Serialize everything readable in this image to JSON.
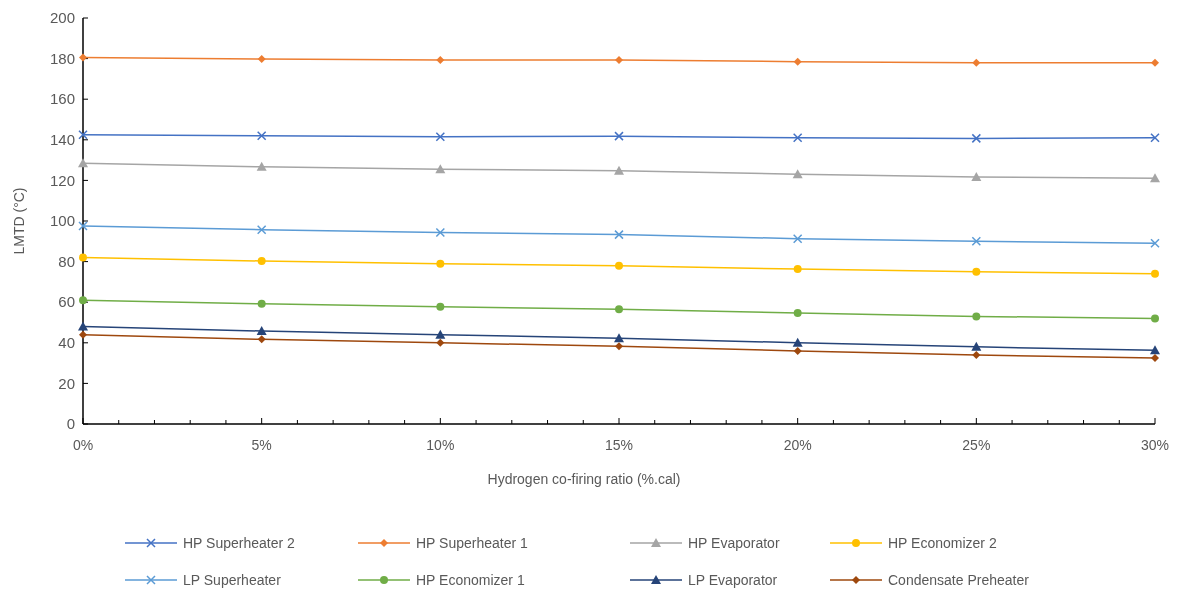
{
  "chart_data": {
    "type": "line",
    "xlabel": "Hydrogen co-firing ratio (%.cal)",
    "ylabel": "LMTD (°C)",
    "x": [
      0,
      5,
      10,
      15,
      20,
      25,
      30
    ],
    "xlim": [
      0,
      30
    ],
    "xticks": [
      {
        "value": 0,
        "label": "0%"
      },
      {
        "value": 1,
        "label": null
      },
      {
        "value": 2,
        "label": null
      },
      {
        "value": 3,
        "label": null
      },
      {
        "value": 4,
        "label": null
      },
      {
        "value": 5,
        "label": "5%"
      },
      {
        "value": 6,
        "label": null
      },
      {
        "value": 7,
        "label": null
      },
      {
        "value": 8,
        "label": null
      },
      {
        "value": 9,
        "label": null
      },
      {
        "value": 10,
        "label": "10%"
      },
      {
        "value": 11,
        "label": null
      },
      {
        "value": 12,
        "label": null
      },
      {
        "value": 13,
        "label": null
      },
      {
        "value": 14,
        "label": null
      },
      {
        "value": 15,
        "label": "15%"
      },
      {
        "value": 16,
        "label": null
      },
      {
        "value": 17,
        "label": null
      },
      {
        "value": 18,
        "label": null
      },
      {
        "value": 19,
        "label": null
      },
      {
        "value": 20,
        "label": "20%"
      },
      {
        "value": 21,
        "label": null
      },
      {
        "value": 22,
        "label": null
      },
      {
        "value": 23,
        "label": null
      },
      {
        "value": 24,
        "label": null
      },
      {
        "value": 25,
        "label": "25%"
      },
      {
        "value": 26,
        "label": null
      },
      {
        "value": 27,
        "label": null
      },
      {
        "value": 28,
        "label": null
      },
      {
        "value": 29,
        "label": null
      },
      {
        "value": 30,
        "label": "30%"
      }
    ],
    "ylim": [
      0,
      200
    ],
    "yticks": [
      0,
      20,
      40,
      60,
      80,
      100,
      120,
      140,
      160,
      180,
      200
    ],
    "grid": false,
    "legend": "bottom",
    "series": [
      {
        "name": "HP Superheater 2",
        "color": "#4472c4",
        "marker": "cross",
        "values": [
          142.5,
          142,
          141.5,
          141.8,
          141,
          140.7,
          141
        ]
      },
      {
        "name": "HP Superheater 1",
        "color": "#ed7d31",
        "marker": "diamond",
        "values": [
          180.5,
          179.8,
          179.3,
          179.3,
          178.5,
          178,
          178
        ]
      },
      {
        "name": "HP Evaporator",
        "color": "#a5a5a5",
        "marker": "triangle",
        "values": [
          128.5,
          126.7,
          125.5,
          124.8,
          123,
          121.7,
          121
        ]
      },
      {
        "name": "HP Economizer 2",
        "color": "#ffc000",
        "marker": "circle",
        "values": [
          82,
          80.3,
          79,
          78,
          76.3,
          75,
          74
        ]
      },
      {
        "name": "LP Superheater",
        "color": "#5b9bd5",
        "marker": "cross",
        "values": [
          97.5,
          95.7,
          94.3,
          93.3,
          91.3,
          90,
          89
        ]
      },
      {
        "name": "HP Economizer 1",
        "color": "#70ad47",
        "marker": "circle",
        "values": [
          61,
          59.2,
          57.7,
          56.5,
          54.7,
          53,
          52
        ]
      },
      {
        "name": "LP Evaporator",
        "color": "#264478",
        "marker": "triangle",
        "values": [
          48,
          45.8,
          44,
          42.3,
          40,
          38,
          36.3
        ]
      },
      {
        "name": "Condensate Preheater",
        "color": "#9e480e",
        "marker": "diamond",
        "values": [
          44,
          41.7,
          40,
          38.3,
          36,
          34,
          32.5
        ]
      }
    ]
  }
}
